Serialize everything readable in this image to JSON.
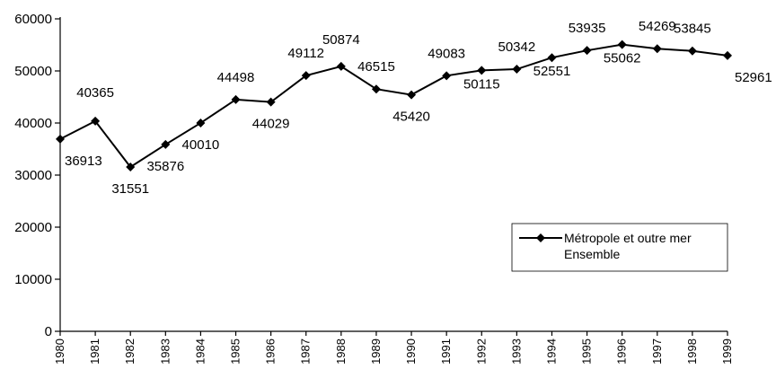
{
  "chart_data": {
    "type": "line",
    "title": "",
    "xlabel": "",
    "ylabel": "",
    "categories": [
      "1980",
      "1981",
      "1982",
      "1983",
      "1984",
      "1985",
      "1986",
      "1987",
      "1988",
      "1989",
      "1990",
      "1991",
      "1992",
      "1993",
      "1994",
      "1995",
      "1996",
      "1997",
      "1998",
      "1999"
    ],
    "series": [
      {
        "name": "Métropole et outre mer Ensemble",
        "legend_lines": [
          "Métropole et outre mer",
          "Ensemble"
        ],
        "values": [
          36913,
          40365,
          31551,
          35876,
          40010,
          44498,
          44029,
          49112,
          50874,
          46515,
          45420,
          49083,
          50115,
          50342,
          52551,
          53935,
          55062,
          54269,
          53845,
          52961
        ],
        "color": "#000000",
        "marker": "diamond"
      }
    ],
    "ylim": [
      0,
      60000
    ],
    "yticks": [
      0,
      10000,
      20000,
      30000,
      40000,
      50000,
      60000
    ],
    "grid": false,
    "legend_position": "lower-right"
  }
}
